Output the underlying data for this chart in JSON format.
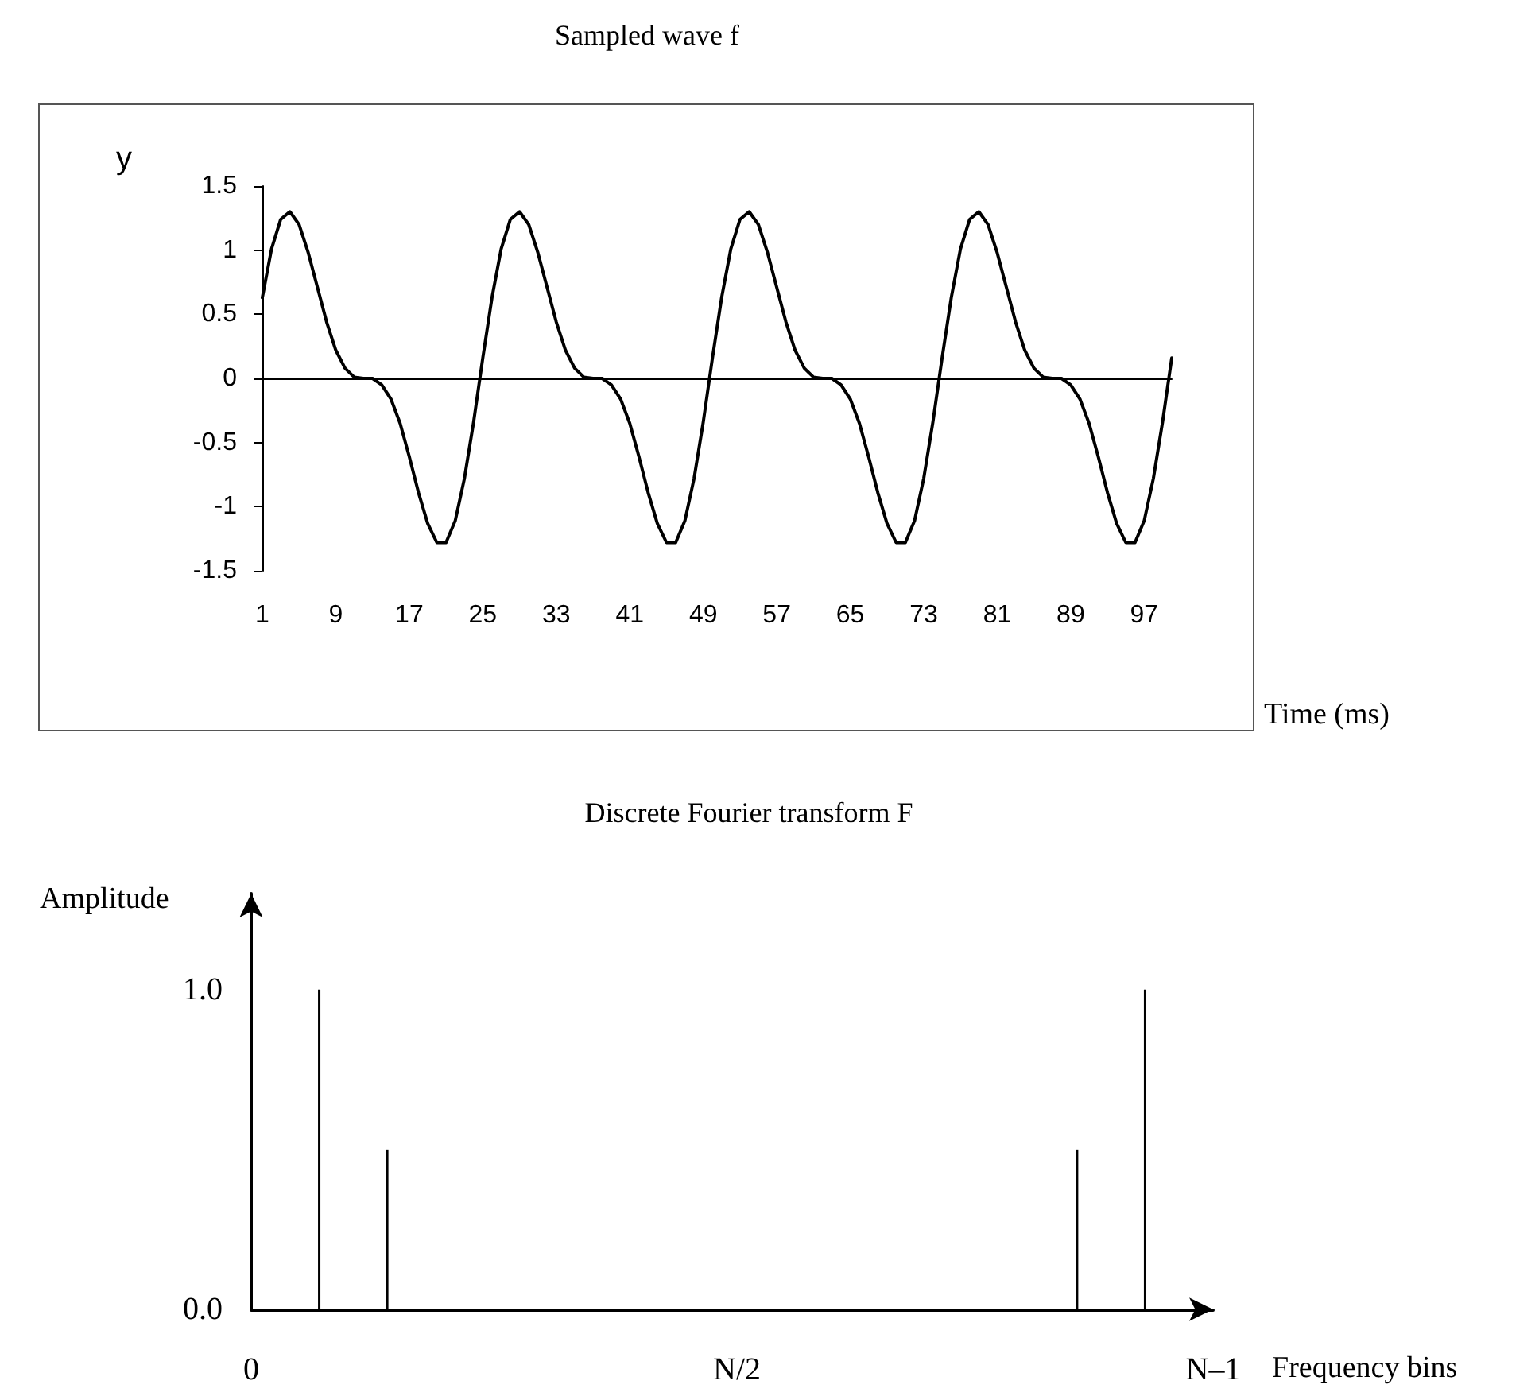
{
  "chart_data": [
    {
      "type": "line",
      "title": "Sampled wave f",
      "xlabel": "Time (ms)",
      "ylabel": "y",
      "categories": [
        "1",
        null,
        null,
        null,
        null,
        null,
        null,
        null,
        "9",
        null,
        null,
        null,
        null,
        null,
        null,
        null,
        "17",
        null,
        null,
        null,
        null,
        null,
        null,
        null,
        "25",
        null,
        null,
        null,
        null,
        null,
        null,
        null,
        "33",
        null,
        null,
        null,
        null,
        null,
        null,
        null,
        "41",
        null,
        null,
        null,
        null,
        null,
        null,
        null,
        "49",
        null,
        null,
        null,
        null,
        null,
        null,
        null,
        "57",
        null,
        null,
        null,
        null,
        null,
        null,
        null,
        "65",
        null,
        null,
        null,
        null,
        null,
        null,
        null,
        "73",
        null,
        null,
        null,
        null,
        null,
        null,
        null,
        "81",
        null,
        null,
        null,
        null,
        null,
        null,
        null,
        "89",
        null,
        null,
        null,
        null,
        null,
        null,
        null,
        "97",
        null,
        null,
        null
      ],
      "values": [
        0.63,
        1.01,
        1.24,
        1.3,
        1.2,
        0.98,
        0.71,
        0.44,
        0.22,
        0.08,
        0.01,
        0,
        0,
        -0.05,
        -0.16,
        -0.35,
        -0.61,
        -0.89,
        -1.13,
        -1.28,
        -1.28,
        -1.11,
        -0.78,
        -0.34,
        0.16,
        0.63,
        1.01,
        1.24,
        1.3,
        1.2,
        0.98,
        0.71,
        0.44,
        0.22,
        0.08,
        0.01,
        0,
        0,
        -0.05,
        -0.16,
        -0.35,
        -0.61,
        -0.89,
        -1.13,
        -1.28,
        -1.28,
        -1.11,
        -0.78,
        -0.34,
        0.16,
        0.63,
        1.01,
        1.24,
        1.3,
        1.2,
        0.98,
        0.71,
        0.44,
        0.22,
        0.08,
        0.01,
        0,
        0,
        -0.05,
        -0.16,
        -0.35,
        -0.61,
        -0.89,
        -1.13,
        -1.28,
        -1.28,
        -1.11,
        -0.78,
        -0.34,
        0.16,
        0.63,
        1.01,
        1.24,
        1.3,
        1.2,
        0.98,
        0.71,
        0.44,
        0.22,
        0.08,
        0.01,
        0,
        0,
        -0.05,
        -0.16,
        -0.35,
        -0.61,
        -0.89,
        -1.13,
        -1.28,
        -1.28,
        -1.11,
        -0.78,
        -0.34,
        0.16
      ],
      "color": "#000000",
      "marker": "none",
      "line_style": "solid",
      "ylim": [
        -1.5,
        1.5
      ],
      "yticks": [
        -1.5,
        -1,
        -0.5,
        0,
        0.5,
        1,
        1.5
      ]
    },
    {
      "type": "bar",
      "title": "Discrete Fourier transform F",
      "xlabel": "Frequency bins",
      "ylabel": "Amplitude",
      "categories": [
        "0",
        null,
        null,
        null,
        null,
        null,
        null,
        null,
        null,
        null,
        null,
        null,
        null,
        null,
        null,
        null,
        null,
        null,
        null,
        null,
        null,
        null,
        null,
        null,
        null,
        null,
        null,
        null,
        null,
        null,
        null,
        null,
        null,
        null,
        null,
        null,
        null,
        null,
        null,
        null,
        null,
        null,
        null,
        null,
        null,
        null,
        null,
        null,
        null,
        null,
        "N/2",
        null,
        null,
        null,
        null,
        null,
        null,
        null,
        null,
        null,
        null,
        null,
        null,
        null,
        null,
        null,
        null,
        null,
        null,
        null,
        null,
        null,
        null,
        null,
        null,
        null,
        null,
        null,
        null,
        null,
        null,
        null,
        null,
        null,
        null,
        null,
        null,
        null,
        null,
        null,
        null,
        null,
        null,
        null,
        null,
        null,
        null,
        null,
        null,
        "N–1"
      ],
      "values": [
        null,
        null,
        null,
        null,
        null,
        null,
        null,
        1.0,
        null,
        null,
        null,
        null,
        null,
        null,
        0.5,
        null,
        null,
        null,
        null,
        null,
        null,
        null,
        null,
        null,
        null,
        null,
        null,
        null,
        null,
        null,
        null,
        null,
        null,
        null,
        null,
        null,
        null,
        null,
        null,
        null,
        null,
        null,
        null,
        null,
        null,
        null,
        null,
        null,
        null,
        null,
        null,
        null,
        null,
        null,
        null,
        null,
        null,
        null,
        null,
        null,
        null,
        null,
        null,
        null,
        null,
        null,
        null,
        null,
        null,
        null,
        null,
        null,
        null,
        null,
        null,
        null,
        null,
        null,
        null,
        null,
        null,
        null,
        null,
        null,
        null,
        0.5,
        null,
        null,
        null,
        null,
        null,
        null,
        1.0,
        null,
        null,
        null,
        null,
        null,
        null,
        null
      ],
      "color": "#000000",
      "ylim": [
        0,
        1.3
      ],
      "yticks": [
        {
          "value": 0,
          "label": "0.0"
        },
        {
          "value": 1,
          "label": "1.0"
        }
      ]
    }
  ]
}
